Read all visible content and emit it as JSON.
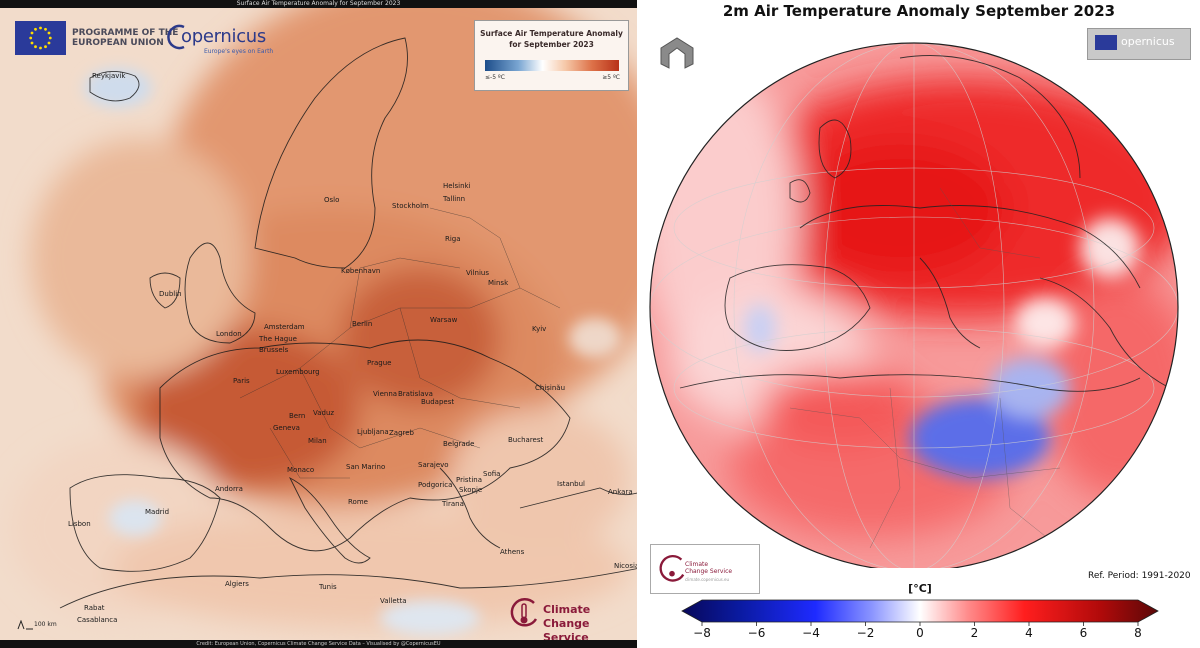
{
  "left_panel": {
    "top_caption": "Surface Air Temperature Anomaly for September 2023",
    "bottom_caption": "Credit: European Union, Copernicus Climate Change Service Data – Visualised by @CopernicusEU",
    "eu_logo_text_line1": "PROGRAMME OF THE",
    "eu_logo_text_line2": "EUROPEAN UNION",
    "copernicus_word": "opernicus",
    "copernicus_tagline": "Europe's eyes on Earth",
    "legend": {
      "title_line1": "Surface Air Temperature Anomaly",
      "title_line2": "for September 2023",
      "low_label": "≤-5 ºC",
      "high_label": "≥5 ºC"
    },
    "c3s_line1": "Climate",
    "c3s_line2": "Change Service",
    "scale_label": "100 km",
    "cities": [
      {
        "name": "Reykjavík"
      },
      {
        "name": "Oslo"
      },
      {
        "name": "Stockholm"
      },
      {
        "name": "Helsinki"
      },
      {
        "name": "Tallinn"
      },
      {
        "name": "Riga"
      },
      {
        "name": "København"
      },
      {
        "name": "Vilnius"
      },
      {
        "name": "Minsk"
      },
      {
        "name": "Dublin"
      },
      {
        "name": "London"
      },
      {
        "name": "Amsterdam"
      },
      {
        "name": "The Hague"
      },
      {
        "name": "Brussels"
      },
      {
        "name": "Berlin"
      },
      {
        "name": "Warsaw"
      },
      {
        "name": "Kyiv"
      },
      {
        "name": "Luxembourg"
      },
      {
        "name": "Paris"
      },
      {
        "name": "Prague"
      },
      {
        "name": "Chișinău"
      },
      {
        "name": "Vienna"
      },
      {
        "name": "Bratislava"
      },
      {
        "name": "Budapest"
      },
      {
        "name": "Bern"
      },
      {
        "name": "Vaduz"
      },
      {
        "name": "Geneva"
      },
      {
        "name": "Milan"
      },
      {
        "name": "Ljubljana"
      },
      {
        "name": "Zagreb"
      },
      {
        "name": "Belgrade"
      },
      {
        "name": "Bucharest"
      },
      {
        "name": "Monaco"
      },
      {
        "name": "San Marino"
      },
      {
        "name": "Sarajevo"
      },
      {
        "name": "Sofia"
      },
      {
        "name": "Andorra"
      },
      {
        "name": "Podgorica"
      },
      {
        "name": "Pristina"
      },
      {
        "name": "Skopje"
      },
      {
        "name": "Istanbul"
      },
      {
        "name": "Ankara"
      },
      {
        "name": "Tirana"
      },
      {
        "name": "Rome"
      },
      {
        "name": "Madrid"
      },
      {
        "name": "Lisbon"
      },
      {
        "name": "Athens"
      },
      {
        "name": "Nicosia"
      },
      {
        "name": "Algiers"
      },
      {
        "name": "Tunis"
      },
      {
        "name": "Valletta"
      },
      {
        "name": "Rabat"
      },
      {
        "name": "Casablanca"
      }
    ]
  },
  "right_panel": {
    "title": "2m Air Temperature Anomaly September 2023",
    "copernicus_word": "opernicus",
    "c3s_line1": "Climate",
    "c3s_line2": "Change Service",
    "c3s_url": "climate.copernicus.eu",
    "ref_period": "Ref. Period: 1991-2020",
    "unit_label": "[°C]",
    "colorbar": {
      "ticks": [
        "−8",
        "−6",
        "−4",
        "−2",
        "0",
        "2",
        "4",
        "6",
        "8"
      ],
      "min": -8,
      "max": 8
    }
  },
  "colors": {
    "anomaly_hot_left": "#c4512e",
    "anomaly_hot_right": "#ee2020",
    "anomaly_cold": "#5b78e0",
    "neutral": "#ffffff"
  }
}
